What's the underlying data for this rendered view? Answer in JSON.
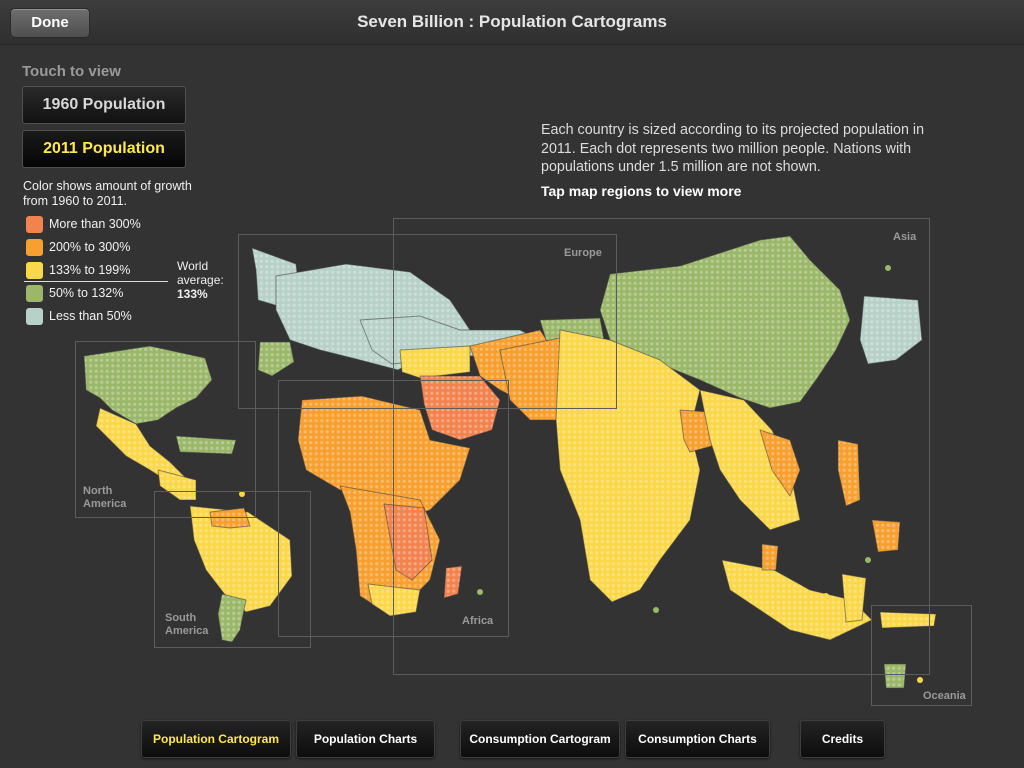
{
  "topbar": {
    "done_label": "Done",
    "title": "Seven Billion : Population Cartograms"
  },
  "sidebar": {
    "touch_label": "Touch to view",
    "buttons": [
      {
        "label": "1960 Population",
        "selected": false
      },
      {
        "label": "2011 Population",
        "selected": true
      }
    ],
    "legend_title": "Color shows amount of growth from 1960 to 2011.",
    "legend": [
      {
        "label": "More than 300%",
        "color": "#f2834f"
      },
      {
        "label": "200% to 300%",
        "color": "#f7a030"
      },
      {
        "label": "133% to 199%",
        "color": "#fbd74a"
      },
      {
        "label": "50% to 132%",
        "color": "#9bb86a"
      },
      {
        "label": "Less than 50%",
        "color": "#b7d1c8"
      }
    ],
    "world_average_label": "World average:",
    "world_average_value": "133%"
  },
  "description": "Each country is sized according to its projected population in 2011. Each dot represents two million people. Nations with populations under 1.5 million are not shown.",
  "tap_hint": "Tap map regions to view more",
  "regions": {
    "europe": "Europe",
    "asia": "Asia",
    "north_america": "North America",
    "south_america": "South America",
    "africa": "Africa",
    "oceania": "Oceania"
  },
  "map_colors": {
    "orange_red": "#f2834f",
    "orange": "#f7a030",
    "yellow": "#fbd74a",
    "green": "#9bb86a",
    "pale": "#b7d1c8"
  },
  "bottom_nav": [
    {
      "label": "Population Cartogram",
      "active": true
    },
    {
      "label": "Population Charts",
      "active": false
    },
    {
      "label": "Consumption Cartogram",
      "active": false
    },
    {
      "label": "Consumption Charts",
      "active": false
    },
    {
      "label": "Credits",
      "active": false
    }
  ]
}
